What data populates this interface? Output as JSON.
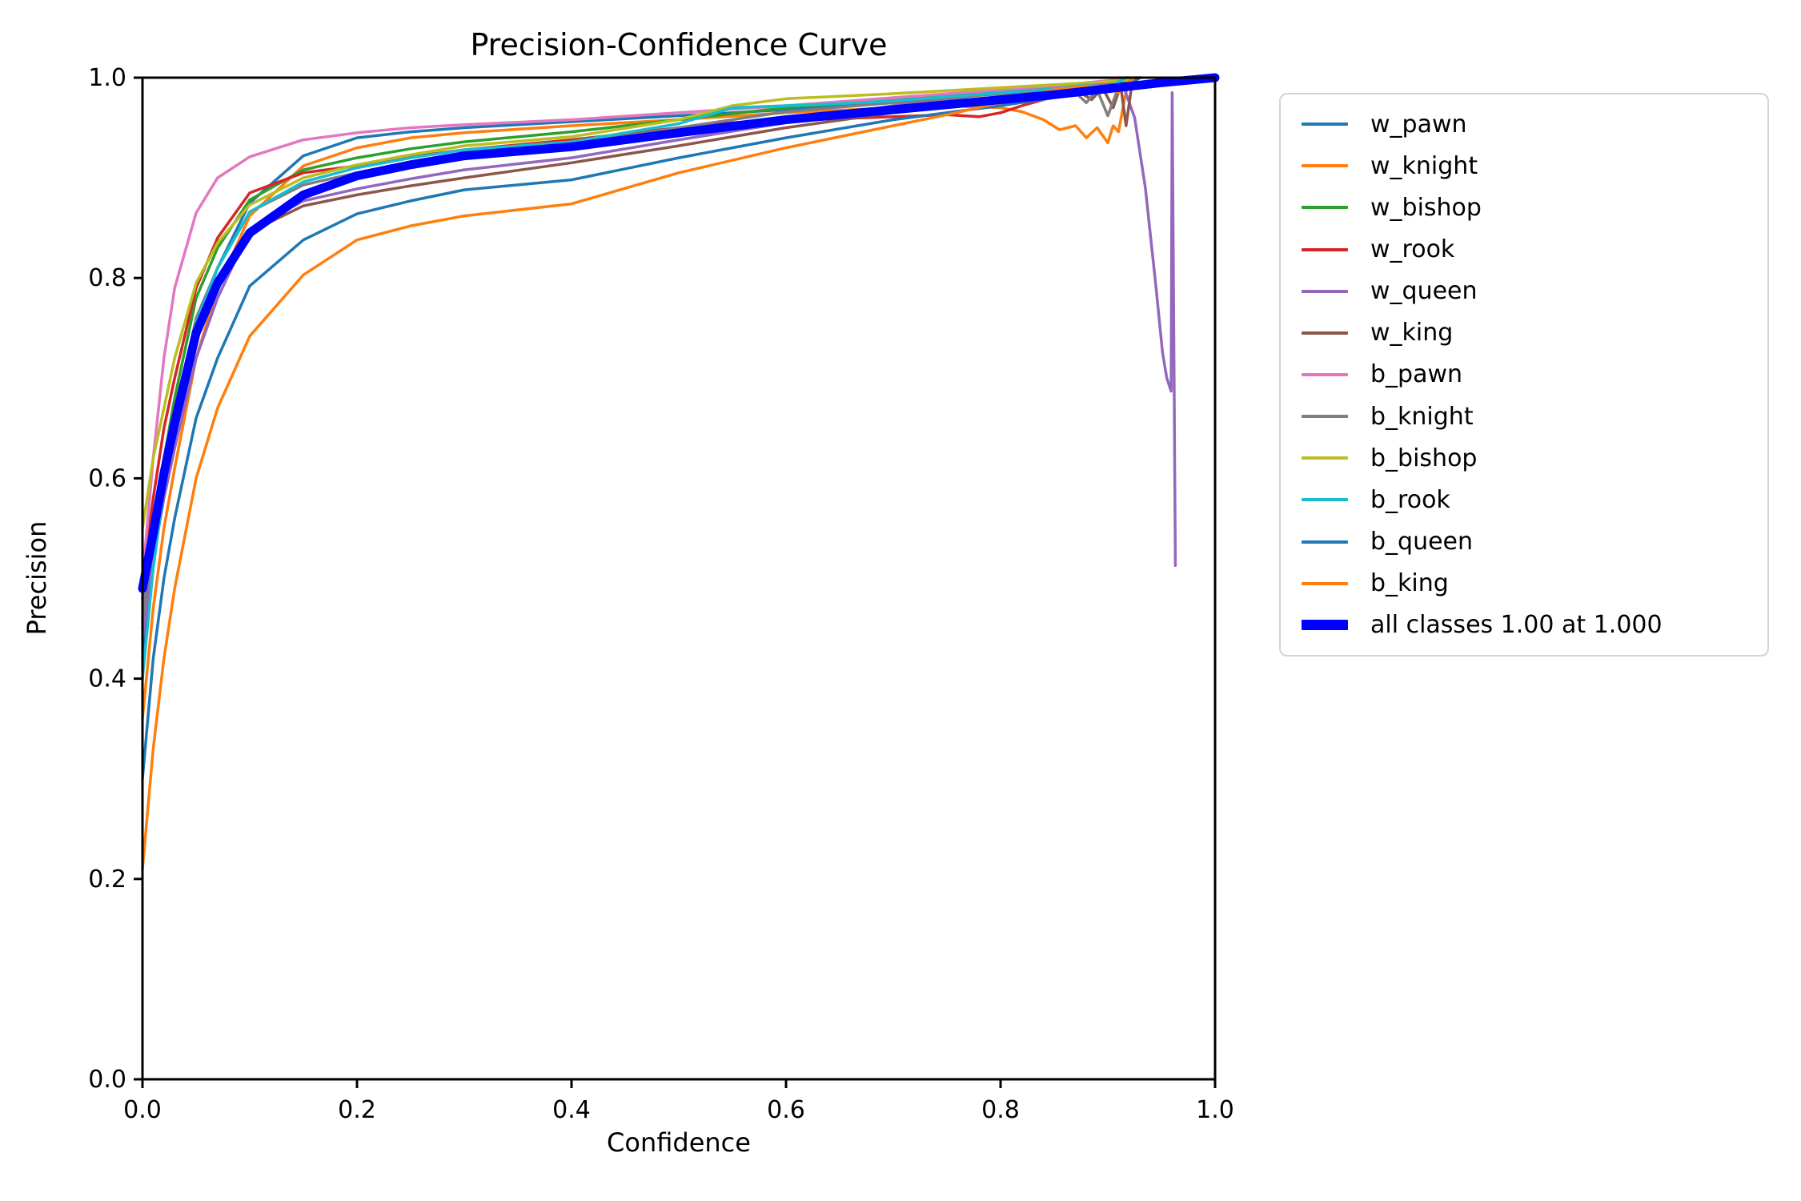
{
  "chart_data": {
    "type": "line",
    "title": "Precision-Confidence Curve",
    "xlabel": "Confidence",
    "ylabel": "Precision",
    "xlim": [
      0.0,
      1.0
    ],
    "ylim": [
      0.0,
      1.0
    ],
    "x_ticks": [
      "0.0",
      "0.2",
      "0.4",
      "0.6",
      "0.8",
      "1.0"
    ],
    "y_ticks": [
      "0.0",
      "0.2",
      "0.4",
      "0.6",
      "0.8",
      "1.0"
    ],
    "grid": false,
    "legend_position": "outside-upper-right",
    "series": [
      {
        "name": "w_pawn",
        "color": "#1f77b4",
        "width": 3.5,
        "x": [
          0,
          0.01,
          0.02,
          0.03,
          0.05,
          0.07,
          0.1,
          0.15,
          0.2,
          0.25,
          0.3,
          0.4,
          0.5,
          0.6,
          0.7,
          0.8,
          0.85,
          0.88,
          0.9,
          0.912,
          0.918
        ],
        "y": [
          0.42,
          0.52,
          0.6,
          0.66,
          0.75,
          0.81,
          0.875,
          0.922,
          0.94,
          0.946,
          0.95,
          0.956,
          0.962,
          0.968,
          0.976,
          0.984,
          0.989,
          0.992,
          0.995,
          0.993,
          1.0
        ]
      },
      {
        "name": "w_knight",
        "color": "#ff7f0e",
        "width": 3.5,
        "x": [
          0,
          0.01,
          0.02,
          0.03,
          0.05,
          0.07,
          0.1,
          0.15,
          0.2,
          0.25,
          0.3,
          0.4,
          0.5,
          0.6,
          0.7,
          0.75,
          0.8,
          0.82,
          0.84,
          0.855,
          0.87,
          0.88,
          0.89,
          0.9,
          0.905,
          0.91,
          0.915,
          0.92
        ],
        "y": [
          0.36,
          0.47,
          0.55,
          0.61,
          0.72,
          0.79,
          0.862,
          0.912,
          0.93,
          0.94,
          0.945,
          0.952,
          0.958,
          0.965,
          0.97,
          0.972,
          0.97,
          0.966,
          0.958,
          0.948,
          0.952,
          0.94,
          0.95,
          0.935,
          0.952,
          0.946,
          0.975,
          1.0
        ]
      },
      {
        "name": "w_bishop",
        "color": "#2ca02c",
        "width": 3.5,
        "x": [
          0,
          0.01,
          0.02,
          0.03,
          0.05,
          0.07,
          0.1,
          0.15,
          0.2,
          0.25,
          0.3,
          0.4,
          0.5,
          0.6,
          0.7,
          0.8,
          0.85,
          0.9,
          0.92,
          0.925
        ],
        "y": [
          0.45,
          0.55,
          0.62,
          0.68,
          0.78,
          0.83,
          0.878,
          0.908,
          0.92,
          0.929,
          0.936,
          0.946,
          0.958,
          0.97,
          0.978,
          0.986,
          0.99,
          0.995,
          0.997,
          1.0
        ]
      },
      {
        "name": "w_rook",
        "color": "#d62728",
        "width": 3.5,
        "x": [
          0,
          0.01,
          0.02,
          0.03,
          0.05,
          0.07,
          0.1,
          0.15,
          0.2,
          0.25,
          0.3,
          0.4,
          0.5,
          0.55,
          0.6,
          0.65,
          0.7,
          0.75,
          0.78,
          0.8,
          0.82,
          0.84,
          0.86,
          0.875,
          0.885,
          0.895,
          0.905,
          0.91
        ],
        "y": [
          0.5,
          0.58,
          0.65,
          0.7,
          0.79,
          0.84,
          0.885,
          0.905,
          0.912,
          0.921,
          0.928,
          0.938,
          0.95,
          0.955,
          0.957,
          0.959,
          0.961,
          0.963,
          0.961,
          0.965,
          0.972,
          0.978,
          0.985,
          0.99,
          0.985,
          0.995,
          0.99,
          1.0
        ]
      },
      {
        "name": "w_queen",
        "color": "#9467bd",
        "width": 3.5,
        "x": [
          0,
          0.01,
          0.02,
          0.03,
          0.05,
          0.07,
          0.1,
          0.15,
          0.2,
          0.25,
          0.3,
          0.4,
          0.5,
          0.6,
          0.7,
          0.8,
          0.85,
          0.88,
          0.9,
          0.915,
          0.925,
          0.935,
          0.945,
          0.951,
          0.955,
          0.959,
          0.96,
          0.963
        ],
        "y": [
          0.44,
          0.52,
          0.58,
          0.63,
          0.72,
          0.78,
          0.848,
          0.877,
          0.889,
          0.899,
          0.908,
          0.92,
          0.938,
          0.955,
          0.972,
          0.985,
          0.99,
          0.992,
          0.993,
          0.99,
          0.96,
          0.89,
          0.79,
          0.726,
          0.7,
          0.687,
          0.985,
          0.513
        ]
      },
      {
        "name": "w_king",
        "color": "#8c564b",
        "width": 3.5,
        "x": [
          0,
          0.01,
          0.02,
          0.03,
          0.05,
          0.07,
          0.1,
          0.15,
          0.2,
          0.25,
          0.3,
          0.4,
          0.5,
          0.6,
          0.7,
          0.8,
          0.85,
          0.87,
          0.885,
          0.895,
          0.905,
          0.912,
          0.917,
          0.922,
          0.927
        ],
        "y": [
          0.48,
          0.56,
          0.62,
          0.67,
          0.755,
          0.8,
          0.846,
          0.872,
          0.883,
          0.892,
          0.9,
          0.915,
          0.932,
          0.95,
          0.965,
          0.978,
          0.985,
          0.988,
          0.978,
          0.99,
          0.97,
          0.992,
          0.952,
          0.99,
          1.0
        ]
      },
      {
        "name": "b_pawn",
        "color": "#e377c2",
        "width": 3.5,
        "x": [
          0,
          0.005,
          0.01,
          0.02,
          0.03,
          0.05,
          0.07,
          0.1,
          0.15,
          0.2,
          0.25,
          0.3,
          0.4,
          0.5,
          0.6,
          0.7,
          0.8,
          0.85,
          0.9,
          0.93
        ],
        "y": [
          0.5,
          0.56,
          0.62,
          0.72,
          0.79,
          0.865,
          0.9,
          0.921,
          0.938,
          0.945,
          0.95,
          0.953,
          0.958,
          0.965,
          0.972,
          0.98,
          0.988,
          0.992,
          0.997,
          1.0
        ]
      },
      {
        "name": "b_knight",
        "color": "#7f7f7f",
        "width": 3.5,
        "x": [
          0,
          0.01,
          0.02,
          0.03,
          0.05,
          0.07,
          0.1,
          0.15,
          0.2,
          0.25,
          0.3,
          0.4,
          0.5,
          0.6,
          0.7,
          0.8,
          0.85,
          0.87,
          0.88,
          0.89,
          0.9,
          0.908,
          0.915,
          0.92
        ],
        "y": [
          0.46,
          0.55,
          0.61,
          0.66,
          0.76,
          0.81,
          0.866,
          0.893,
          0.905,
          0.916,
          0.925,
          0.934,
          0.95,
          0.966,
          0.975,
          0.984,
          0.988,
          0.985,
          0.975,
          0.988,
          0.962,
          0.985,
          0.992,
          1.0
        ]
      },
      {
        "name": "b_bishop",
        "color": "#bcbd22",
        "width": 3.5,
        "x": [
          0,
          0.01,
          0.02,
          0.03,
          0.05,
          0.07,
          0.1,
          0.15,
          0.2,
          0.25,
          0.3,
          0.4,
          0.5,
          0.55,
          0.6,
          0.7,
          0.8,
          0.85,
          0.9,
          0.92,
          0.93
        ],
        "y": [
          0.55,
          0.62,
          0.67,
          0.72,
          0.795,
          0.835,
          0.873,
          0.9,
          0.913,
          0.923,
          0.932,
          0.941,
          0.958,
          0.972,
          0.979,
          0.984,
          0.99,
          0.993,
          0.996,
          0.998,
          1.0
        ]
      },
      {
        "name": "b_rook",
        "color": "#17becf",
        "width": 3.5,
        "x": [
          0,
          0.01,
          0.02,
          0.03,
          0.05,
          0.07,
          0.1,
          0.15,
          0.2,
          0.25,
          0.3,
          0.4,
          0.5,
          0.55,
          0.6,
          0.65,
          0.7,
          0.8,
          0.85,
          0.88,
          0.9,
          0.91,
          0.917
        ],
        "y": [
          0.4,
          0.51,
          0.59,
          0.65,
          0.755,
          0.81,
          0.866,
          0.896,
          0.91,
          0.92,
          0.928,
          0.936,
          0.954,
          0.97,
          0.972,
          0.974,
          0.977,
          0.985,
          0.989,
          0.993,
          0.99,
          0.996,
          1.0
        ]
      },
      {
        "name": "b_queen",
        "color": "#1f77b4",
        "width": 3.5,
        "x": [
          0,
          0.01,
          0.02,
          0.03,
          0.05,
          0.07,
          0.1,
          0.15,
          0.2,
          0.25,
          0.3,
          0.4,
          0.5,
          0.6,
          0.7,
          0.8,
          0.85,
          0.88,
          0.9,
          0.92,
          0.93
        ],
        "y": [
          0.3,
          0.42,
          0.5,
          0.56,
          0.66,
          0.72,
          0.792,
          0.838,
          0.864,
          0.877,
          0.888,
          0.898,
          0.92,
          0.94,
          0.958,
          0.972,
          0.98,
          0.985,
          0.988,
          0.993,
          1.0
        ]
      },
      {
        "name": "b_king",
        "color": "#ff7f0e",
        "width": 3.5,
        "x": [
          0,
          0.01,
          0.02,
          0.03,
          0.05,
          0.07,
          0.1,
          0.15,
          0.2,
          0.25,
          0.3,
          0.4,
          0.5,
          0.6,
          0.7,
          0.75,
          0.8,
          0.85,
          0.88,
          0.9,
          0.91,
          0.918,
          0.925
        ],
        "y": [
          0.21,
          0.33,
          0.42,
          0.49,
          0.6,
          0.67,
          0.742,
          0.803,
          0.838,
          0.852,
          0.862,
          0.874,
          0.905,
          0.93,
          0.952,
          0.963,
          0.975,
          0.988,
          0.992,
          0.99,
          0.985,
          0.995,
          1.0
        ]
      },
      {
        "name": "all classes 1.00 at 1.000",
        "color": "#0000ff",
        "width": 11,
        "x": [
          0,
          0.01,
          0.02,
          0.03,
          0.05,
          0.07,
          0.1,
          0.15,
          0.2,
          0.25,
          0.3,
          0.4,
          0.5,
          0.6,
          0.7,
          0.8,
          0.85,
          0.9,
          0.95,
          1.0
        ],
        "y": [
          0.49,
          0.545,
          0.605,
          0.655,
          0.745,
          0.795,
          0.845,
          0.883,
          0.902,
          0.913,
          0.922,
          0.931,
          0.945,
          0.958,
          0.968,
          0.978,
          0.983,
          0.989,
          0.995,
          1.0
        ]
      }
    ]
  },
  "legend": {
    "items": [
      {
        "label": "w_pawn",
        "color": "#1f77b4",
        "thick": false
      },
      {
        "label": "w_knight",
        "color": "#ff7f0e",
        "thick": false
      },
      {
        "label": "w_bishop",
        "color": "#2ca02c",
        "thick": false
      },
      {
        "label": "w_rook",
        "color": "#d62728",
        "thick": false
      },
      {
        "label": "w_queen",
        "color": "#9467bd",
        "thick": false
      },
      {
        "label": "w_king",
        "color": "#8c564b",
        "thick": false
      },
      {
        "label": "b_pawn",
        "color": "#e377c2",
        "thick": false
      },
      {
        "label": "b_knight",
        "color": "#7f7f7f",
        "thick": false
      },
      {
        "label": "b_bishop",
        "color": "#bcbd22",
        "thick": false
      },
      {
        "label": "b_rook",
        "color": "#17becf",
        "thick": false
      },
      {
        "label": "b_queen",
        "color": "#1f77b4",
        "thick": false
      },
      {
        "label": "b_king",
        "color": "#ff7f0e",
        "thick": false
      },
      {
        "label": "all classes 1.00 at 1.000",
        "color": "#0000ff",
        "thick": true
      }
    ]
  }
}
